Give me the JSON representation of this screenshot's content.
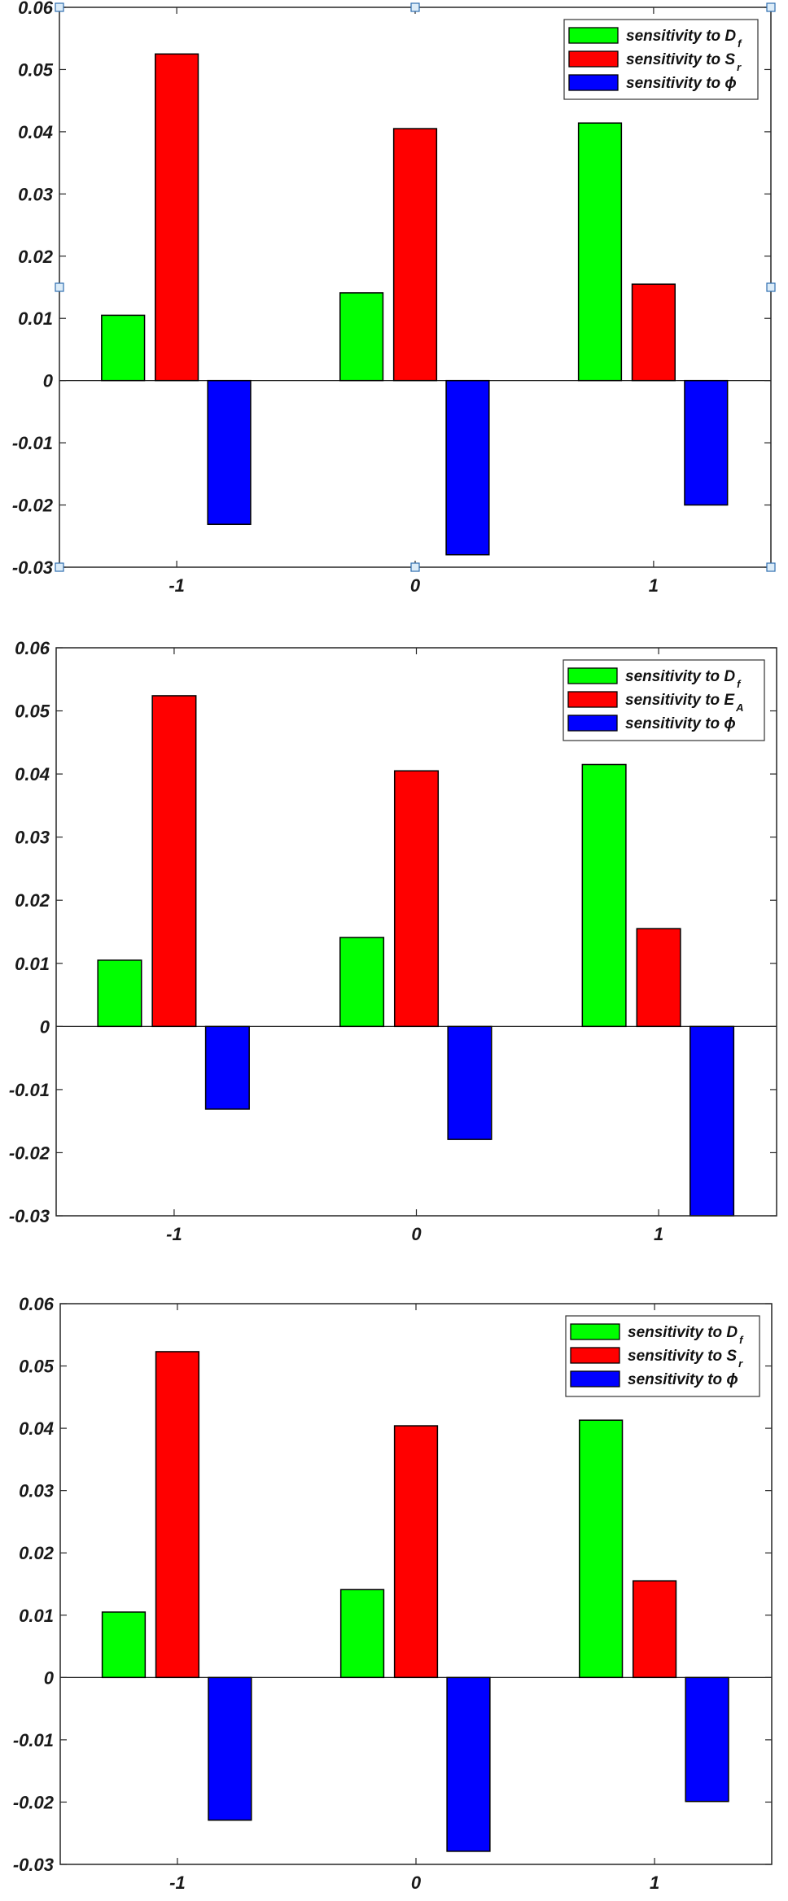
{
  "chart_data": [
    {
      "type": "bar",
      "panel": 1,
      "title": "",
      "xlabel": "",
      "ylabel": "",
      "categories": [
        "-1",
        "0",
        "1"
      ],
      "x": [
        -1,
        0,
        1
      ],
      "ylim": [
        -0.03,
        0.06
      ],
      "yticks": [
        0.06,
        0.05,
        0.04,
        0.03,
        0.02,
        0.01,
        0,
        -0.01,
        -0.02,
        -0.03
      ],
      "ytick_labels": [
        "0.06",
        "0.05",
        "0.04",
        "0.03",
        "0.02",
        "0.01",
        "0",
        "-0.01",
        "-0.02",
        "-0.03"
      ],
      "grid": false,
      "legend_position": "top-right",
      "selected": true,
      "series": [
        {
          "name": "sensitivity to D_f",
          "label_main": "sensitivity to D",
          "label_sub": "f",
          "color": "#00ff00",
          "values": [
            0.0105,
            0.0141,
            0.0414
          ]
        },
        {
          "name": "sensitivity to S_r",
          "label_main": "sensitivity to S",
          "label_sub": "r",
          "color": "#ff0000",
          "values": [
            0.0525,
            0.0405,
            0.0155
          ]
        },
        {
          "name": "sensitivity to ϕ",
          "label_main": "sensitivity to ϕ",
          "label_sub": "",
          "color": "#0000ff",
          "values": [
            -0.0231,
            -0.028,
            -0.02
          ]
        }
      ]
    },
    {
      "type": "bar",
      "panel": 2,
      "title": "",
      "xlabel": "",
      "ylabel": "",
      "categories": [
        "-1",
        "0",
        "1"
      ],
      "x": [
        -1,
        0,
        1
      ],
      "ylim": [
        -0.03,
        0.06
      ],
      "yticks": [
        0.06,
        0.05,
        0.04,
        0.03,
        0.02,
        0.01,
        0,
        -0.01,
        -0.02,
        -0.03
      ],
      "ytick_labels": [
        "0.06",
        "0.05",
        "0.04",
        "0.03",
        "0.02",
        "0.01",
        "0",
        "-0.01",
        "-0.02",
        "-0.03"
      ],
      "grid": false,
      "legend_position": "top-right",
      "selected": false,
      "series": [
        {
          "name": "sensitivity to D_f",
          "label_main": "sensitivity to D",
          "label_sub": "f",
          "color": "#00ff00",
          "values": [
            0.0105,
            0.0141,
            0.0415
          ]
        },
        {
          "name": "sensitivity to E_A",
          "label_main": "sensitivity to E",
          "label_sub": "A",
          "color": "#ff0000",
          "values": [
            0.0524,
            0.0405,
            0.0155
          ]
        },
        {
          "name": "sensitivity to ϕ",
          "label_main": "sensitivity to ϕ",
          "label_sub": "",
          "color": "#0000ff",
          "values": [
            -0.0131,
            -0.0179,
            -0.03
          ]
        }
      ]
    },
    {
      "type": "bar",
      "panel": 3,
      "title": "",
      "xlabel": "",
      "ylabel": "",
      "categories": [
        "-1",
        "0",
        "1"
      ],
      "x": [
        -1,
        0,
        1
      ],
      "ylim": [
        -0.03,
        0.06
      ],
      "yticks": [
        0.06,
        0.05,
        0.04,
        0.03,
        0.02,
        0.01,
        0,
        -0.01,
        -0.02,
        -0.03
      ],
      "ytick_labels": [
        "0.06",
        "0.05",
        "0.04",
        "0.03",
        "0.02",
        "0.01",
        "0",
        "-0.01",
        "-0.02",
        "-0.03"
      ],
      "grid": false,
      "legend_position": "top-right",
      "selected": false,
      "series": [
        {
          "name": "sensitivity to D_f",
          "label_main": "sensitivity to D",
          "label_sub": "f",
          "color": "#00ff00",
          "values": [
            0.0105,
            0.0141,
            0.0413
          ]
        },
        {
          "name": "sensitivity to S_r",
          "label_main": "sensitivity to S",
          "label_sub": "r",
          "color": "#ff0000",
          "values": [
            0.0523,
            0.0404,
            0.0155
          ]
        },
        {
          "name": "sensitivity to ϕ",
          "label_main": "sensitivity to ϕ",
          "label_sub": "",
          "color": "#0000ff",
          "values": [
            -0.0229,
            -0.0279,
            -0.0199
          ]
        }
      ]
    }
  ],
  "colors": {
    "axis": "#262626",
    "bar_edge": "#000000",
    "handle_fill": "#dcecf8",
    "handle_stroke": "#2f6fb0"
  }
}
